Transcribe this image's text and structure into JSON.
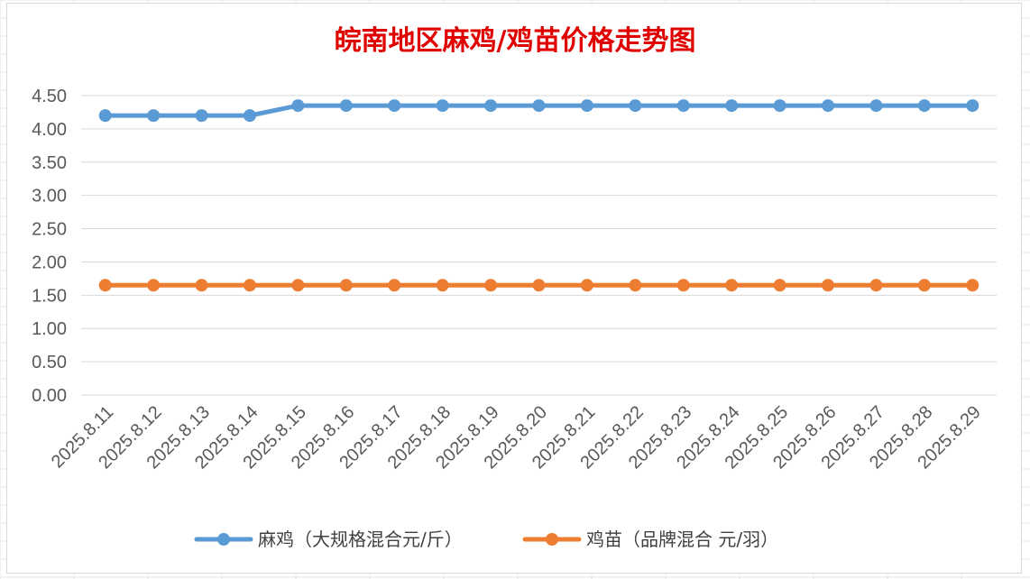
{
  "chart_data": {
    "type": "line",
    "title": "皖南地区麻鸡/鸡苗价格走势图",
    "xlabel": "",
    "ylabel": "",
    "categories": [
      "2025.8.11",
      "2025.8.12",
      "2025.8.13",
      "2025.8.14",
      "2025.8.15",
      "2025.8.16",
      "2025.8.17",
      "2025.8.18",
      "2025.8.19",
      "2025.8.20",
      "2025.8.21",
      "2025.8.22",
      "2025.8.23",
      "2025.8.24",
      "2025.8.25",
      "2025.8.26",
      "2025.8.27",
      "2025.8.28",
      "2025.8.29"
    ],
    "ylim": [
      0,
      4.5
    ],
    "yticks": [
      "0.00",
      "0.50",
      "1.00",
      "1.50",
      "2.00",
      "2.50",
      "3.00",
      "3.50",
      "4.00",
      "4.50"
    ],
    "grid": true,
    "legend_position": "bottom",
    "series": [
      {
        "name": "麻鸡（大规格混合元/斤）",
        "color": "#5b9bd5",
        "values": [
          4.2,
          4.2,
          4.2,
          4.2,
          4.35,
          4.35,
          4.35,
          4.35,
          4.35,
          4.35,
          4.35,
          4.35,
          4.35,
          4.35,
          4.35,
          4.35,
          4.35,
          4.35,
          4.35
        ]
      },
      {
        "name": "鸡苗（品牌混合 元/羽）",
        "color": "#ed7d31",
        "values": [
          1.65,
          1.65,
          1.65,
          1.65,
          1.65,
          1.65,
          1.65,
          1.65,
          1.65,
          1.65,
          1.65,
          1.65,
          1.65,
          1.65,
          1.65,
          1.65,
          1.65,
          1.65,
          1.65
        ]
      }
    ]
  }
}
